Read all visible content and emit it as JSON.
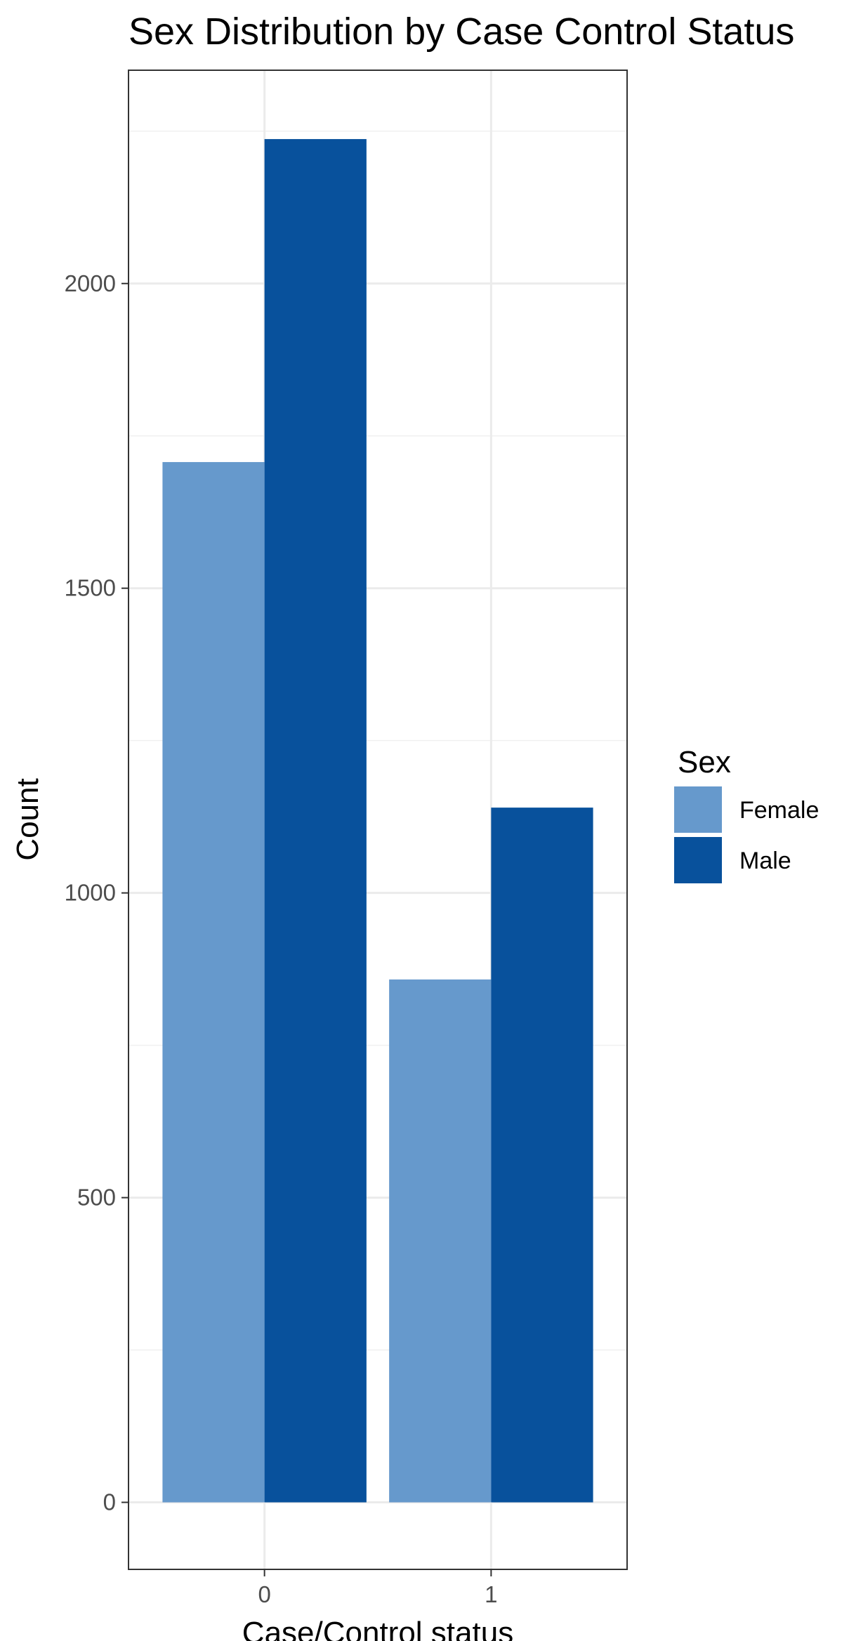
{
  "chart_data": {
    "type": "bar",
    "title": "Sex Distribution by Case Control Status",
    "xlabel": "Case/Control status",
    "ylabel": "Count",
    "categories": [
      "0",
      "1"
    ],
    "series": [
      {
        "name": "Female",
        "values": [
          1707,
          858
        ],
        "color": "#6699CC"
      },
      {
        "name": "Male",
        "values": [
          2237,
          1140
        ],
        "color": "#08519C"
      }
    ],
    "ylim": [
      -110,
      2350
    ],
    "y_ticks": [
      0,
      500,
      1000,
      1500,
      2000
    ],
    "y_tick_labels": [
      "0",
      "500",
      "1000",
      "1500",
      "2000"
    ],
    "grid": true,
    "legend": {
      "title": "Sex",
      "position": "right"
    }
  }
}
